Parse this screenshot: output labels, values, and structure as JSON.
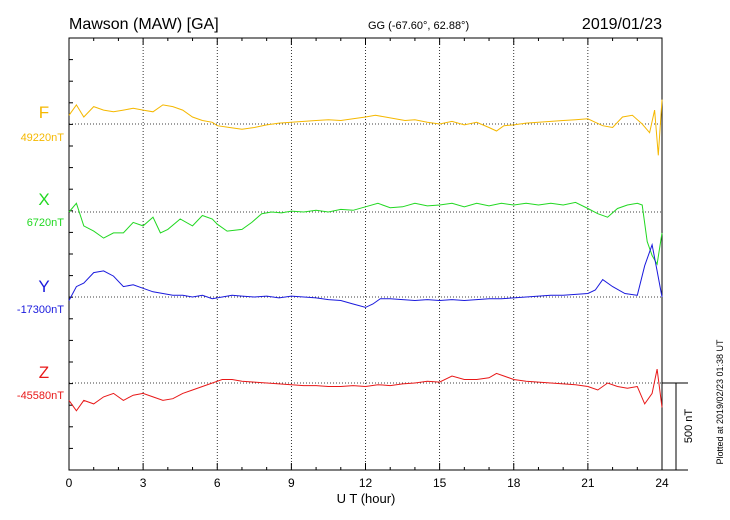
{
  "header": {
    "station": "Mawson (MAW)  [GA]",
    "coords": "GG (-67.60°,  62.88°)",
    "date": "2019/01/23"
  },
  "plotted_note": "Plotted at 2019/02/23 01:38 UT",
  "scale_label": "500 nT",
  "chart_data": {
    "type": "line",
    "xlabel": "U T (hour)",
    "xlim": [
      0,
      24
    ],
    "x_ticks": [
      "0",
      "3",
      "6",
      "9",
      "12",
      "15",
      "18",
      "21",
      "24"
    ],
    "scale_nT": 500,
    "series": [
      {
        "name": "F",
        "baseline_label": "49220nT",
        "baseline": 49220,
        "color": "#f5b800",
        "points": [
          [
            0,
            49270
          ],
          [
            0.3,
            49330
          ],
          [
            0.6,
            49260
          ],
          [
            1,
            49320
          ],
          [
            1.4,
            49300
          ],
          [
            1.8,
            49290
          ],
          [
            2.2,
            49300
          ],
          [
            2.6,
            49310
          ],
          [
            3,
            49300
          ],
          [
            3.4,
            49290
          ],
          [
            3.8,
            49330
          ],
          [
            4.2,
            49320
          ],
          [
            4.6,
            49300
          ],
          [
            5,
            49260
          ],
          [
            5.4,
            49240
          ],
          [
            5.8,
            49230
          ],
          [
            6,
            49210
          ],
          [
            6.5,
            49200
          ],
          [
            7,
            49190
          ],
          [
            7.5,
            49200
          ],
          [
            8,
            49215
          ],
          [
            8.5,
            49225
          ],
          [
            9,
            49230
          ],
          [
            9.5,
            49235
          ],
          [
            10,
            49240
          ],
          [
            10.5,
            49245
          ],
          [
            11,
            49240
          ],
          [
            11.5,
            49250
          ],
          [
            12,
            49260
          ],
          [
            12.4,
            49270
          ],
          [
            12.8,
            49260
          ],
          [
            13.2,
            49250
          ],
          [
            13.6,
            49240
          ],
          [
            14,
            49245
          ],
          [
            14.5,
            49230
          ],
          [
            15,
            49220
          ],
          [
            15.5,
            49235
          ],
          [
            16,
            49215
          ],
          [
            16.5,
            49230
          ],
          [
            17,
            49200
          ],
          [
            17.3,
            49180
          ],
          [
            17.6,
            49210
          ],
          [
            18,
            49215
          ],
          [
            18.5,
            49225
          ],
          [
            19,
            49230
          ],
          [
            19.5,
            49235
          ],
          [
            20,
            49240
          ],
          [
            20.5,
            49245
          ],
          [
            21,
            49250
          ],
          [
            21.3,
            49230
          ],
          [
            21.6,
            49210
          ],
          [
            22,
            49200
          ],
          [
            22.4,
            49260
          ],
          [
            22.8,
            49270
          ],
          [
            23.2,
            49220
          ],
          [
            23.5,
            49170
          ],
          [
            23.7,
            49300
          ],
          [
            23.85,
            49040
          ],
          [
            24,
            49360
          ]
        ]
      },
      {
        "name": "X",
        "baseline_label": "6720nT",
        "baseline": 6720,
        "color": "#22d822",
        "points": [
          [
            0,
            6720
          ],
          [
            0.3,
            6770
          ],
          [
            0.6,
            6640
          ],
          [
            1,
            6610
          ],
          [
            1.4,
            6570
          ],
          [
            1.8,
            6600
          ],
          [
            2.2,
            6600
          ],
          [
            2.6,
            6660
          ],
          [
            3,
            6640
          ],
          [
            3.4,
            6690
          ],
          [
            3.7,
            6600
          ],
          [
            4,
            6620
          ],
          [
            4.5,
            6680
          ],
          [
            5,
            6640
          ],
          [
            5.4,
            6700
          ],
          [
            5.8,
            6680
          ],
          [
            6,
            6650
          ],
          [
            6.4,
            6610
          ],
          [
            7,
            6620
          ],
          [
            7.4,
            6660
          ],
          [
            7.8,
            6710
          ],
          [
            8.2,
            6720
          ],
          [
            8.6,
            6715
          ],
          [
            9,
            6725
          ],
          [
            9.5,
            6720
          ],
          [
            10,
            6730
          ],
          [
            10.5,
            6720
          ],
          [
            11,
            6735
          ],
          [
            11.5,
            6730
          ],
          [
            12,
            6750
          ],
          [
            12.5,
            6770
          ],
          [
            13,
            6745
          ],
          [
            13.5,
            6750
          ],
          [
            14,
            6770
          ],
          [
            14.5,
            6755
          ],
          [
            15,
            6760
          ],
          [
            15.5,
            6770
          ],
          [
            16,
            6750
          ],
          [
            16.5,
            6770
          ],
          [
            17,
            6755
          ],
          [
            17.5,
            6770
          ],
          [
            18,
            6760
          ],
          [
            18.5,
            6770
          ],
          [
            19,
            6760
          ],
          [
            19.5,
            6770
          ],
          [
            20,
            6760
          ],
          [
            20.5,
            6775
          ],
          [
            21,
            6740
          ],
          [
            21.4,
            6710
          ],
          [
            21.8,
            6690
          ],
          [
            22.2,
            6740
          ],
          [
            22.6,
            6760
          ],
          [
            23,
            6770
          ],
          [
            23.2,
            6760
          ],
          [
            23.4,
            6550
          ],
          [
            23.6,
            6470
          ],
          [
            23.8,
            6420
          ],
          [
            24,
            6600
          ]
        ]
      },
      {
        "name": "Y",
        "baseline_label": "-17300nT",
        "baseline": -17300,
        "color": "#1a1add",
        "points": [
          [
            0,
            -17320
          ],
          [
            0.3,
            -17240
          ],
          [
            0.6,
            -17220
          ],
          [
            1,
            -17160
          ],
          [
            1.4,
            -17150
          ],
          [
            1.8,
            -17180
          ],
          [
            2.2,
            -17240
          ],
          [
            2.6,
            -17230
          ],
          [
            3,
            -17250
          ],
          [
            3.4,
            -17270
          ],
          [
            3.8,
            -17280
          ],
          [
            4.2,
            -17290
          ],
          [
            4.6,
            -17290
          ],
          [
            5,
            -17300
          ],
          [
            5.4,
            -17290
          ],
          [
            5.8,
            -17310
          ],
          [
            6.2,
            -17300
          ],
          [
            6.6,
            -17290
          ],
          [
            7,
            -17295
          ],
          [
            7.5,
            -17300
          ],
          [
            8,
            -17295
          ],
          [
            8.5,
            -17305
          ],
          [
            9,
            -17295
          ],
          [
            9.5,
            -17300
          ],
          [
            10,
            -17305
          ],
          [
            10.5,
            -17315
          ],
          [
            11,
            -17320
          ],
          [
            11.5,
            -17340
          ],
          [
            12,
            -17360
          ],
          [
            12.3,
            -17340
          ],
          [
            12.6,
            -17310
          ],
          [
            13,
            -17310
          ],
          [
            13.5,
            -17315
          ],
          [
            14,
            -17320
          ],
          [
            14.5,
            -17315
          ],
          [
            15,
            -17320
          ],
          [
            15.5,
            -17315
          ],
          [
            16,
            -17320
          ],
          [
            16.5,
            -17315
          ],
          [
            17,
            -17310
          ],
          [
            17.5,
            -17310
          ],
          [
            18,
            -17305
          ],
          [
            18.5,
            -17300
          ],
          [
            19,
            -17295
          ],
          [
            19.5,
            -17290
          ],
          [
            20,
            -17290
          ],
          [
            20.5,
            -17285
          ],
          [
            21,
            -17280
          ],
          [
            21.3,
            -17260
          ],
          [
            21.6,
            -17200
          ],
          [
            22,
            -17240
          ],
          [
            22.5,
            -17280
          ],
          [
            23,
            -17290
          ],
          [
            23.3,
            -17120
          ],
          [
            23.6,
            -17000
          ],
          [
            23.8,
            -17150
          ],
          [
            24,
            -17300
          ]
        ]
      },
      {
        "name": "Z",
        "baseline_label": "-45580nT",
        "baseline": -45580,
        "color": "#e81818",
        "points": [
          [
            0,
            -45680
          ],
          [
            0.3,
            -45740
          ],
          [
            0.6,
            -45680
          ],
          [
            1,
            -45700
          ],
          [
            1.4,
            -45660
          ],
          [
            1.8,
            -45640
          ],
          [
            2.2,
            -45680
          ],
          [
            2.6,
            -45650
          ],
          [
            3,
            -45640
          ],
          [
            3.4,
            -45660
          ],
          [
            3.8,
            -45680
          ],
          [
            4.2,
            -45670
          ],
          [
            4.6,
            -45640
          ],
          [
            5,
            -45620
          ],
          [
            5.4,
            -45600
          ],
          [
            5.8,
            -45580
          ],
          [
            6.2,
            -45560
          ],
          [
            6.6,
            -45560
          ],
          [
            7,
            -45570
          ],
          [
            7.5,
            -45575
          ],
          [
            8,
            -45580
          ],
          [
            8.5,
            -45585
          ],
          [
            9,
            -45590
          ],
          [
            9.5,
            -45595
          ],
          [
            10,
            -45595
          ],
          [
            10.5,
            -45600
          ],
          [
            11,
            -45600
          ],
          [
            11.5,
            -45595
          ],
          [
            12,
            -45600
          ],
          [
            12.5,
            -45590
          ],
          [
            13,
            -45595
          ],
          [
            13.5,
            -45585
          ],
          [
            14,
            -45580
          ],
          [
            14.5,
            -45570
          ],
          [
            15,
            -45575
          ],
          [
            15.5,
            -45540
          ],
          [
            16,
            -45560
          ],
          [
            16.5,
            -45560
          ],
          [
            17,
            -45550
          ],
          [
            17.3,
            -45525
          ],
          [
            17.6,
            -45540
          ],
          [
            18,
            -45560
          ],
          [
            18.5,
            -45570
          ],
          [
            19,
            -45575
          ],
          [
            19.5,
            -45580
          ],
          [
            20,
            -45585
          ],
          [
            20.5,
            -45590
          ],
          [
            21,
            -45600
          ],
          [
            21.4,
            -45620
          ],
          [
            21.8,
            -45580
          ],
          [
            22.2,
            -45600
          ],
          [
            22.6,
            -45610
          ],
          [
            23,
            -45600
          ],
          [
            23.3,
            -45700
          ],
          [
            23.6,
            -45640
          ],
          [
            23.8,
            -45500
          ],
          [
            24,
            -45720
          ]
        ]
      }
    ]
  }
}
